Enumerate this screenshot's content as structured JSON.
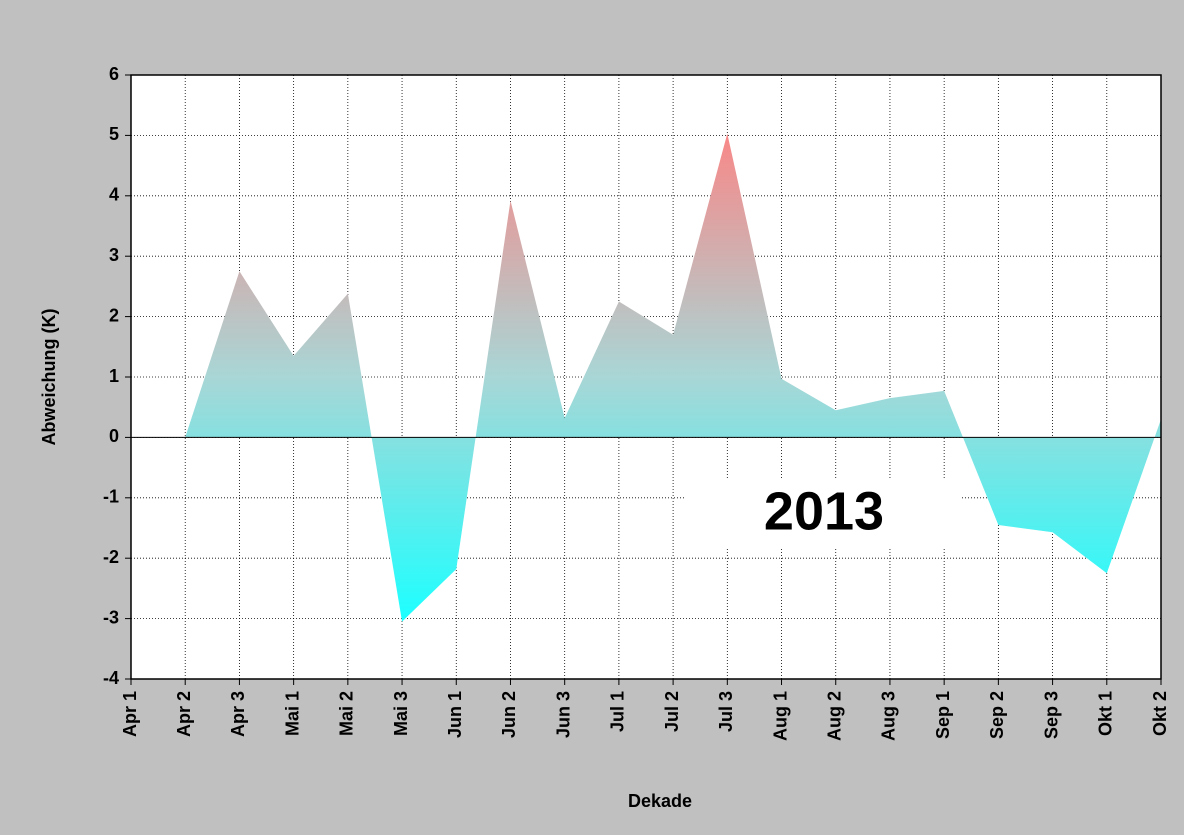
{
  "chart_data": {
    "type": "area",
    "xlabel": "Dekade",
    "ylabel": "Abweichung (K)",
    "annotation": "2013",
    "annotation_color": "#ff0000",
    "categories": [
      "Apr 1",
      "Apr 2",
      "Apr 3",
      "Mai 1",
      "Mai 2",
      "Mai 3",
      "Jun 1",
      "Jun 2",
      "Jun 3",
      "Jul 1",
      "Jul 2",
      "Jul 3",
      "Aug 1",
      "Aug 2",
      "Aug 3",
      "Sep 1",
      "Sep 2",
      "Sep 3",
      "Okt 1",
      "Okt 2"
    ],
    "values": [
      null,
      0,
      2.75,
      1.35,
      2.38,
      -3.05,
      -2.18,
      3.92,
      0.32,
      2.25,
      1.7,
      5.03,
      0.97,
      0.45,
      0.65,
      0.77,
      -1.45,
      -1.57,
      -2.25,
      0.3
    ],
    "colors": [
      "#f88888",
      "#a9d6d6",
      "#1effff"
    ],
    "ylim": [
      -4,
      6
    ],
    "yticks": [
      -4,
      -3,
      -2,
      -1,
      0,
      1,
      2,
      3,
      4,
      5,
      6
    ],
    "grid": true
  }
}
